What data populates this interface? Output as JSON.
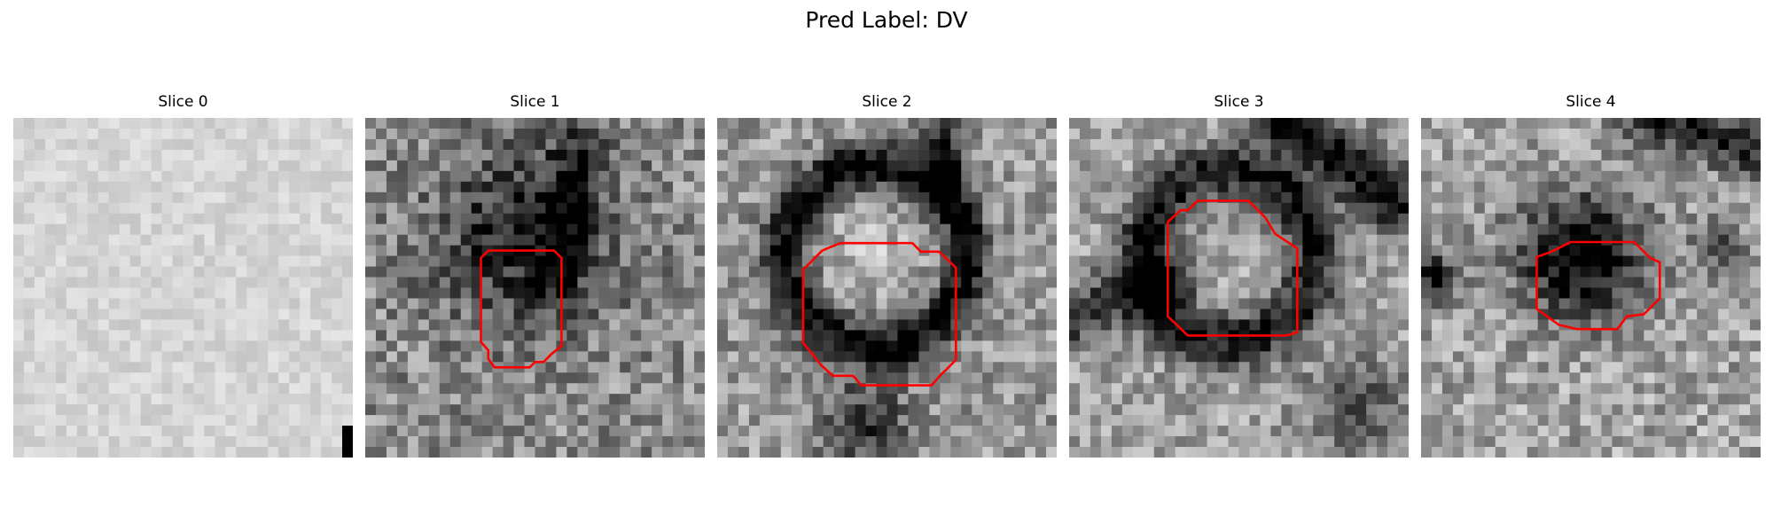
{
  "figure": {
    "title": "Pred Label: DV"
  },
  "panels": [
    {
      "title": "Slice 0",
      "image_subject": "uniform light grey noise patch",
      "has_contour": false
    },
    {
      "title": "Slice 1",
      "image_subject": "grey noise patch with darker blob",
      "has_contour": true
    },
    {
      "title": "Slice 2",
      "image_subject": "ring-shaped dark structure around lighter center",
      "has_contour": true
    },
    {
      "title": "Slice 3",
      "image_subject": "dark ring structure with dark branches",
      "has_contour": true
    },
    {
      "title": "Slice 4",
      "image_subject": "dark blob with light surround",
      "has_contour": true
    }
  ],
  "colors": {
    "contour": "#ff0000"
  }
}
